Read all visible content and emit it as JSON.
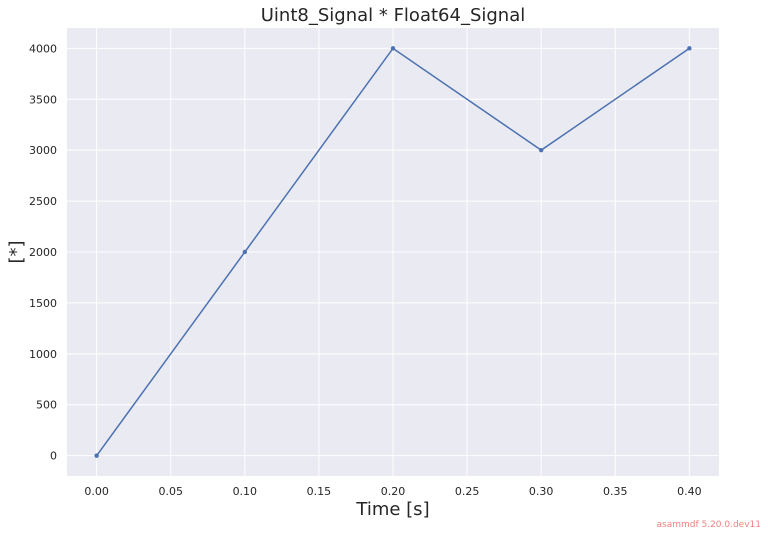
{
  "chart_data": {
    "type": "line",
    "title": "Uint8_Signal * Float64_Signal",
    "xlabel": "Time [s]",
    "ylabel": "[*]",
    "x": [
      0.0,
      0.1,
      0.2,
      0.3,
      0.4
    ],
    "series": [
      {
        "values": [
          0,
          2000,
          4000,
          3000,
          4000
        ],
        "color": "#4c72b0"
      }
    ],
    "xlim": [
      -0.02,
      0.42
    ],
    "ylim": [
      -200,
      4200
    ],
    "xticks": [
      0.0,
      0.05,
      0.1,
      0.15,
      0.2,
      0.25,
      0.3,
      0.35,
      0.4
    ],
    "xtick_labels": [
      "0.00",
      "0.05",
      "0.10",
      "0.15",
      "0.20",
      "0.25",
      "0.30",
      "0.35",
      "0.40"
    ],
    "yticks": [
      0,
      500,
      1000,
      1500,
      2000,
      2500,
      3000,
      3500,
      4000
    ],
    "ytick_labels": [
      "0",
      "500",
      "1000",
      "1500",
      "2000",
      "2500",
      "3000",
      "3500",
      "4000"
    ],
    "grid": true,
    "background_color": "#eaeaf2",
    "grid_color": "#ffffff"
  },
  "watermark": "asammdf 5.20.0.dev11"
}
